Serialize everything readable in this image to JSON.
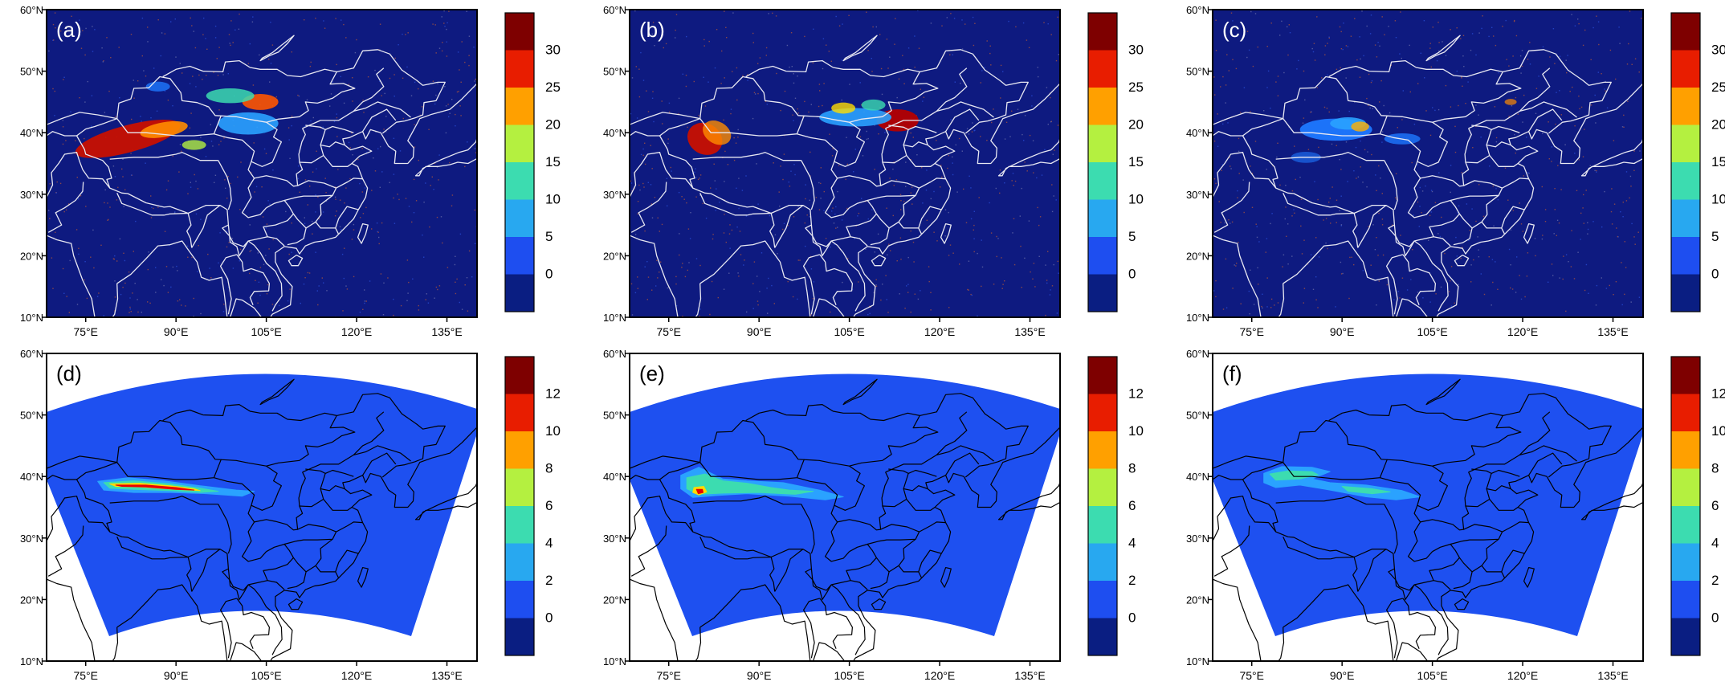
{
  "panels": [
    {
      "label": "(a)",
      "type": "obs",
      "hotspots": [
        {
          "cx": 82,
          "cy": 39,
          "rx": 9,
          "ry": 2.2,
          "c": "#c81000",
          "o": 0.95,
          "rot": -15
        },
        {
          "cx": 88,
          "cy": 40.5,
          "rx": 4,
          "ry": 1.2,
          "c": "#ff8c00",
          "o": 0.9,
          "rot": -10
        },
        {
          "cx": 102,
          "cy": 41.5,
          "rx": 5,
          "ry": 1.8,
          "c": "#2aa2ff",
          "o": 0.9,
          "rot": 0
        },
        {
          "cx": 104,
          "cy": 45,
          "rx": 3,
          "ry": 1.3,
          "c": "#ff5500",
          "o": 0.9,
          "rot": 0
        },
        {
          "cx": 99,
          "cy": 46,
          "rx": 4,
          "ry": 1.2,
          "c": "#3cdcb0",
          "o": 0.85,
          "rot": 0
        },
        {
          "cx": 93,
          "cy": 38,
          "rx": 2,
          "ry": 0.8,
          "c": "#b4f040",
          "o": 0.8,
          "rot": 0
        },
        {
          "cx": 87,
          "cy": 47.5,
          "rx": 2,
          "ry": 0.8,
          "c": "#1e78ff",
          "o": 0.8,
          "rot": 0
        }
      ]
    },
    {
      "label": "(b)",
      "type": "obs",
      "hotspots": [
        {
          "cx": 81,
          "cy": 39,
          "rx": 3,
          "ry": 2.5,
          "c": "#c81000",
          "o": 0.95,
          "rot": 30
        },
        {
          "cx": 83,
          "cy": 40,
          "rx": 2.5,
          "ry": 1.8,
          "c": "#ff8c00",
          "o": 0.8,
          "rot": 30
        },
        {
          "cx": 113,
          "cy": 42,
          "rx": 3.5,
          "ry": 1.8,
          "c": "#b40000",
          "o": 0.95,
          "rot": 0
        },
        {
          "cx": 106,
          "cy": 42.5,
          "rx": 6,
          "ry": 1.5,
          "c": "#2aa2ff",
          "o": 0.9,
          "rot": 0
        },
        {
          "cx": 104,
          "cy": 44,
          "rx": 2,
          "ry": 0.9,
          "c": "#ffdc00",
          "o": 0.8,
          "rot": 0
        },
        {
          "cx": 109,
          "cy": 44.5,
          "rx": 2,
          "ry": 0.9,
          "c": "#3cdcb0",
          "o": 0.8,
          "rot": 0
        }
      ]
    },
    {
      "label": "(c)",
      "type": "obs",
      "hotspots": [
        {
          "cx": 89,
          "cy": 40.5,
          "rx": 6,
          "ry": 1.8,
          "c": "#1e78ff",
          "o": 0.95,
          "rot": 0
        },
        {
          "cx": 91,
          "cy": 41.5,
          "rx": 3,
          "ry": 1,
          "c": "#2aa2ff",
          "o": 0.9,
          "rot": 0
        },
        {
          "cx": 93,
          "cy": 41,
          "rx": 1.5,
          "ry": 0.8,
          "c": "#ffb000",
          "o": 0.8,
          "rot": 0
        },
        {
          "cx": 100,
          "cy": 39,
          "rx": 3,
          "ry": 0.9,
          "c": "#1e78ff",
          "o": 0.8,
          "rot": 0
        },
        {
          "cx": 84,
          "cy": 36,
          "rx": 2.5,
          "ry": 0.9,
          "c": "#1e78ff",
          "o": 0.6,
          "rot": 0
        },
        {
          "cx": 118,
          "cy": 45,
          "rx": 1,
          "ry": 0.5,
          "c": "#ff8c00",
          "o": 0.7,
          "rot": 0
        }
      ]
    },
    {
      "label": "(d)",
      "type": "model",
      "plumes": [
        {
          "points": [
            [
              77,
              39.2
            ],
            [
              82,
              39.8
            ],
            [
              88,
              39.3
            ],
            [
              94,
              38.5
            ],
            [
              100,
              37.8
            ],
            [
              103,
              37.6
            ],
            [
              101,
              36.8
            ],
            [
              95,
              37.2
            ],
            [
              89,
              37.4
            ],
            [
              83,
              37.4
            ],
            [
              78,
              37.8
            ]
          ],
          "c": "#2aa2ff"
        },
        {
          "points": [
            [
              78,
              39
            ],
            [
              83,
              39.3
            ],
            [
              89,
              38.8
            ],
            [
              94,
              38.1
            ],
            [
              97,
              37.6
            ],
            [
              94,
              37.4
            ],
            [
              89,
              37.7
            ],
            [
              83,
              37.9
            ],
            [
              79,
              38.1
            ]
          ],
          "c": "#3cdcb0"
        },
        {
          "points": [
            [
              79,
              38.8
            ],
            [
              84,
              38.9
            ],
            [
              89,
              38.5
            ],
            [
              93,
              38
            ],
            [
              94,
              37.7
            ],
            [
              90,
              37.9
            ],
            [
              84,
              38.3
            ],
            [
              80,
              38.4
            ]
          ],
          "c": "#ffdc00"
        },
        {
          "points": [
            [
              80,
              38.6
            ],
            [
              85,
              38.6
            ],
            [
              90,
              38.2
            ],
            [
              93,
              37.8
            ],
            [
              90,
              37.9
            ],
            [
              85,
              38.3
            ],
            [
              81,
              38.4
            ]
          ],
          "c": "#e80000"
        }
      ]
    },
    {
      "label": "(e)",
      "type": "model",
      "plumes": [
        {
          "points": [
            [
              77,
              40.2
            ],
            [
              80,
              41.5
            ],
            [
              84,
              39.6
            ],
            [
              88,
              39.3
            ],
            [
              94,
              39
            ],
            [
              100,
              37.8
            ],
            [
              104,
              36.7
            ],
            [
              101,
              36.2
            ],
            [
              95,
              36.8
            ],
            [
              88,
              37.2
            ],
            [
              83,
              36.9
            ],
            [
              79,
              36.6
            ],
            [
              77,
              38
            ]
          ],
          "c": "#2aa2ff"
        },
        {
          "points": [
            [
              78,
              39.8
            ],
            [
              81,
              40.4
            ],
            [
              84,
              39.3
            ],
            [
              88,
              38.9
            ],
            [
              92,
              38.2
            ],
            [
              95,
              37.8
            ],
            [
              99,
              37.6
            ],
            [
              96,
              37.1
            ],
            [
              90,
              37.4
            ],
            [
              84,
              37.3
            ],
            [
              80,
              37.1
            ],
            [
              78,
              38
            ]
          ],
          "c": "#3cdcb0"
        },
        {
          "points": [
            [
              79.2,
              38.2
            ],
            [
              80.8,
              38.4
            ],
            [
              81.3,
              37.5
            ],
            [
              80,
              37
            ],
            [
              79,
              37.4
            ]
          ],
          "c": "#ffdc00"
        },
        {
          "points": [
            [
              79.6,
              37.9
            ],
            [
              80.6,
              37.9
            ],
            [
              80.7,
              37.4
            ],
            [
              79.9,
              37.2
            ]
          ],
          "c": "#e80000"
        }
      ]
    },
    {
      "label": "(f)",
      "type": "model",
      "plumes": [
        {
          "points": [
            [
              77,
              40.5
            ],
            [
              80,
              41.6
            ],
            [
              85,
              41.5
            ],
            [
              88,
              40.8
            ],
            [
              85,
              39.6
            ],
            [
              88,
              39
            ],
            [
              94,
              38.6
            ],
            [
              100,
              37.7
            ],
            [
              103,
              36.7
            ],
            [
              99,
              36.2
            ],
            [
              94,
              36.7
            ],
            [
              88,
              37.8
            ],
            [
              83,
              38.6
            ],
            [
              79,
              38.2
            ],
            [
              77,
              39
            ]
          ],
          "c": "#2aa2ff"
        },
        {
          "points": [
            [
              78,
              40.4
            ],
            [
              81,
              40.9
            ],
            [
              85,
              40.8
            ],
            [
              86,
              40.3
            ],
            [
              83,
              39.6
            ],
            [
              79,
              39.4
            ]
          ],
          "c": "#3cdcb0"
        },
        {
          "points": [
            [
              90,
              38.4
            ],
            [
              95,
              38
            ],
            [
              98,
              37.5
            ],
            [
              95,
              37.2
            ],
            [
              91,
              37.6
            ]
          ],
          "c": "#3cdcb0"
        }
      ]
    }
  ],
  "xticks": [
    "75°E",
    "90°E",
    "105°E",
    "120°E",
    "135°E"
  ],
  "yticks": [
    "60°N",
    "50°N",
    "40°N",
    "30°N",
    "20°N",
    "10°N"
  ],
  "colorbar_obs": [
    "30",
    "25",
    "20",
    "15",
    "10",
    "5",
    "0"
  ],
  "colorbar_model": [
    "12",
    "10",
    "8",
    "6",
    "4",
    "2",
    "0"
  ],
  "colors": {
    "ramp": [
      "#7e0000",
      "#e81d00",
      "#ffa000",
      "#b4f040",
      "#3cdcb0",
      "#28a8f0",
      "#1e4ef0",
      "#0a1e82"
    ],
    "obs_background": "#0e1a80",
    "model_domain": "#1e50f0",
    "obs_line": "#e8e8f2",
    "model_line": "#000000"
  }
}
